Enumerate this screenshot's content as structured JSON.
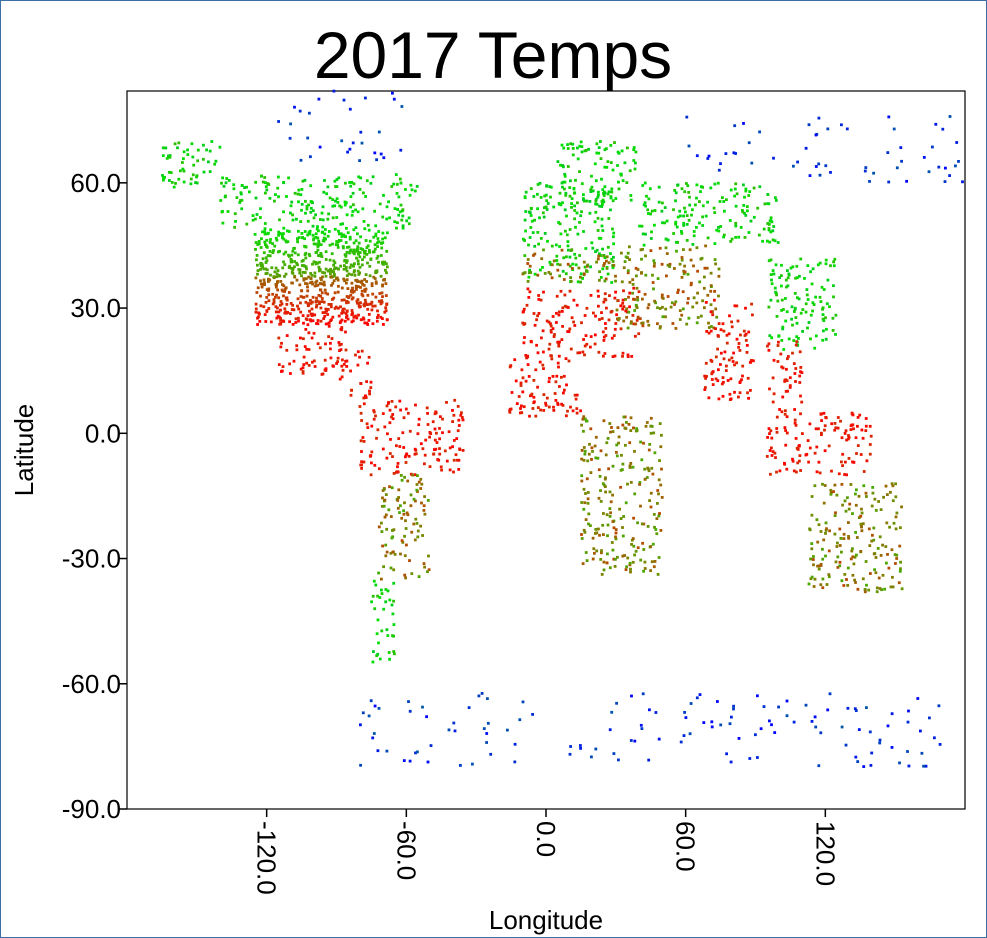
{
  "chart_data": {
    "type": "scatter",
    "title": "2017 Temps",
    "xlabel": "Longitude",
    "ylabel": "Latitude",
    "xlim": [
      -180,
      180
    ],
    "ylim": [
      -90,
      82
    ],
    "x_ticks": [
      -120,
      -60,
      0,
      60,
      120
    ],
    "x_tick_labels": [
      "-120.0",
      "-60.0",
      "0.0",
      "60.0",
      "120.0"
    ],
    "y_ticks": [
      60,
      30,
      0,
      -30,
      -60,
      -90
    ],
    "y_tick_labels": [
      "60.0",
      "30.0",
      "0.0",
      "-30.0",
      "-60.0",
      "-90.0"
    ],
    "grid": false,
    "legend": "none",
    "color_scale": {
      "cold": "#0000ff",
      "cool": "#00e000",
      "mild": "#808000",
      "hot": "#ff0000"
    },
    "regions": [
      {
        "lon": [
          -125,
          -68
        ],
        "lat": [
          26,
          49
        ],
        "temp": "mixed-us"
      },
      {
        "lon": [
          -165,
          -140
        ],
        "lat": [
          58,
          70
        ],
        "temp": "cool"
      },
      {
        "lon": [
          -140,
          -55
        ],
        "lat": [
          49,
          62
        ],
        "temp": "cool"
      },
      {
        "lon": [
          -115,
          -85
        ],
        "lat": [
          14,
          28
        ],
        "temp": "hot"
      },
      {
        "lon": [
          -90,
          -75
        ],
        "lat": [
          8,
          20
        ],
        "temp": "hot"
      },
      {
        "lon": [
          -80,
          -35
        ],
        "lat": [
          -10,
          8
        ],
        "temp": "hot"
      },
      {
        "lon": [
          -72,
          -50
        ],
        "lat": [
          -35,
          -10
        ],
        "temp": "mild"
      },
      {
        "lon": [
          -75,
          -65
        ],
        "lat": [
          -55,
          -35
        ],
        "temp": "cool"
      },
      {
        "lon": [
          -10,
          30
        ],
        "lat": [
          36,
          60
        ],
        "temp": "cool"
      },
      {
        "lon": [
          5,
          40
        ],
        "lat": [
          55,
          70
        ],
        "temp": "cool"
      },
      {
        "lon": [
          -10,
          30
        ],
        "lat": [
          36,
          44
        ],
        "temp": "mild"
      },
      {
        "lon": [
          -17,
          15
        ],
        "lat": [
          4,
          18
        ],
        "temp": "hot"
      },
      {
        "lon": [
          -10,
          40
        ],
        "lat": [
          18,
          35
        ],
        "temp": "hot"
      },
      {
        "lon": [
          15,
          50
        ],
        "lat": [
          -34,
          4
        ],
        "temp": "mild"
      },
      {
        "lon": [
          40,
          100
        ],
        "lat": [
          45,
          60
        ],
        "temp": "cool"
      },
      {
        "lon": [
          30,
          75
        ],
        "lat": [
          25,
          45
        ],
        "temp": "mild"
      },
      {
        "lon": [
          68,
          90
        ],
        "lat": [
          8,
          32
        ],
        "temp": "hot"
      },
      {
        "lon": [
          95,
          125
        ],
        "lat": [
          20,
          42
        ],
        "temp": "cool"
      },
      {
        "lon": [
          95,
          110
        ],
        "lat": [
          5,
          22
        ],
        "temp": "hot"
      },
      {
        "lon": [
          95,
          140
        ],
        "lat": [
          -10,
          5
        ],
        "temp": "hot"
      },
      {
        "lon": [
          113,
          153
        ],
        "lat": [
          -38,
          -12
        ],
        "temp": "mild"
      },
      {
        "lon": [
          60,
          180
        ],
        "lat": [
          60,
          76
        ],
        "temp": "cold"
      },
      {
        "lon": [
          -120,
          -60
        ],
        "lat": [
          65,
          82
        ],
        "temp": "cold"
      },
      {
        "lon": [
          -80,
          170
        ],
        "lat": [
          -80,
          -62
        ],
        "temp": "cold"
      }
    ]
  }
}
